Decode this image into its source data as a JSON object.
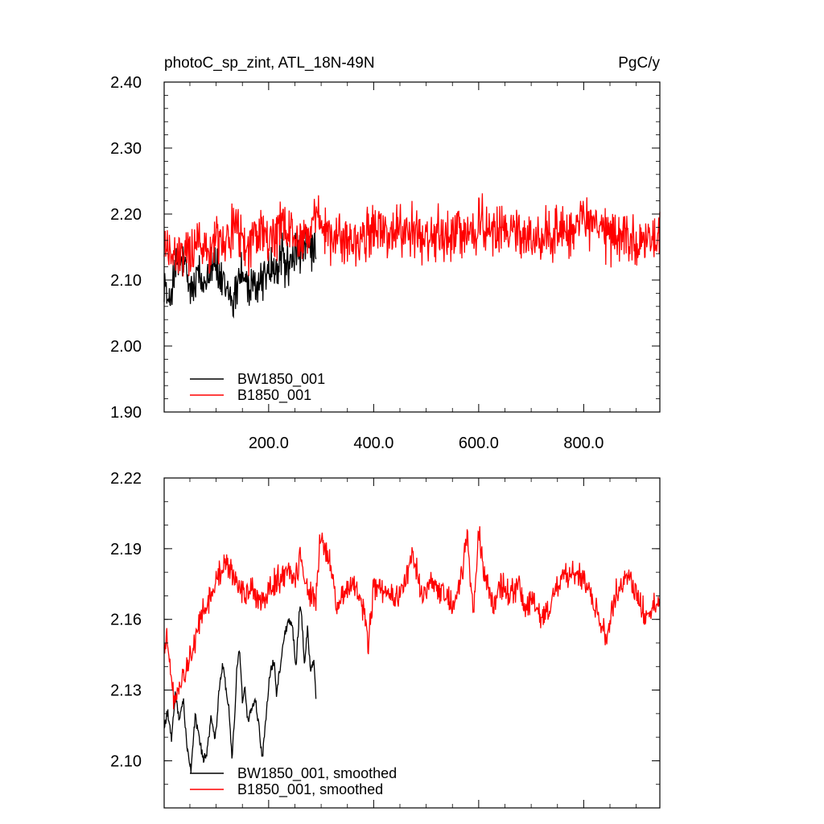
{
  "chart_data": [
    {
      "type": "line",
      "title": "photoC_sp_zint, ATL_18N-49N",
      "units": "PgC/y",
      "xlabel": "",
      "ylabel": "",
      "xlim": [
        1,
        945
      ],
      "ylim": [
        1.9,
        2.4
      ],
      "x_ticks": [
        200.0,
        400.0,
        600.0,
        800.0
      ],
      "x_tick_labels": [
        "200.0",
        "400.0",
        "600.0",
        "800.0"
      ],
      "y_ticks": [
        1.9,
        2.0,
        2.1,
        2.2,
        2.3,
        2.4
      ],
      "y_tick_labels": [
        "1.90",
        "2.00",
        "2.10",
        "2.20",
        "2.30",
        "2.40"
      ],
      "grid": false,
      "legend_position": "bottom-left",
      "series": [
        {
          "name": "BW1850_001",
          "color": "#000000",
          "x_range": [
            1,
            290
          ],
          "anchors": [
            [
              1,
              2.11
            ],
            [
              5,
              2.08
            ],
            [
              10,
              2.05
            ],
            [
              15,
              2.09
            ],
            [
              25,
              2.12
            ],
            [
              35,
              2.13
            ],
            [
              45,
              2.1
            ],
            [
              55,
              2.08
            ],
            [
              65,
              2.11
            ],
            [
              75,
              2.09
            ],
            [
              85,
              2.12
            ],
            [
              95,
              2.14
            ],
            [
              105,
              2.1
            ],
            [
              115,
              2.09
            ],
            [
              125,
              2.08
            ],
            [
              135,
              2.07
            ],
            [
              145,
              2.12
            ],
            [
              155,
              2.1
            ],
            [
              165,
              2.08
            ],
            [
              175,
              2.09
            ],
            [
              185,
              2.1
            ],
            [
              195,
              2.11
            ],
            [
              205,
              2.12
            ],
            [
              215,
              2.11
            ],
            [
              225,
              2.14
            ],
            [
              235,
              2.12
            ],
            [
              245,
              2.13
            ],
            [
              255,
              2.15
            ],
            [
              265,
              2.14
            ],
            [
              275,
              2.15
            ],
            [
              285,
              2.14
            ],
            [
              290,
              2.13
            ]
          ],
          "noise_amplitude": 0.045
        },
        {
          "name": "B1850_001",
          "color": "#ff0000",
          "x_range": [
            1,
            945
          ],
          "anchors": [
            [
              1,
              2.15
            ],
            [
              10,
              2.15
            ],
            [
              20,
              2.13
            ],
            [
              30,
              2.13
            ],
            [
              40,
              2.14
            ],
            [
              55,
              2.15
            ],
            [
              70,
              2.16
            ],
            [
              85,
              2.15
            ],
            [
              95,
              2.17
            ],
            [
              110,
              2.16
            ],
            [
              125,
              2.17
            ],
            [
              140,
              2.18
            ],
            [
              155,
              2.15
            ],
            [
              170,
              2.16
            ],
            [
              185,
              2.17
            ],
            [
              200,
              2.16
            ],
            [
              215,
              2.17
            ],
            [
              230,
              2.18
            ],
            [
              245,
              2.17
            ],
            [
              260,
              2.16
            ],
            [
              275,
              2.17
            ],
            [
              290,
              2.19
            ],
            [
              300,
              2.18
            ],
            [
              320,
              2.16
            ],
            [
              340,
              2.17
            ],
            [
              360,
              2.15
            ],
            [
              380,
              2.16
            ],
            [
              400,
              2.18
            ],
            [
              420,
              2.17
            ],
            [
              440,
              2.17
            ],
            [
              460,
              2.18
            ],
            [
              480,
              2.17
            ],
            [
              500,
              2.16
            ],
            [
              520,
              2.17
            ],
            [
              540,
              2.16
            ],
            [
              560,
              2.18
            ],
            [
              580,
              2.17
            ],
            [
              600,
              2.19
            ],
            [
              620,
              2.17
            ],
            [
              640,
              2.17
            ],
            [
              660,
              2.18
            ],
            [
              680,
              2.17
            ],
            [
              700,
              2.16
            ],
            [
              720,
              2.16
            ],
            [
              740,
              2.17
            ],
            [
              760,
              2.18
            ],
            [
              780,
              2.17
            ],
            [
              800,
              2.19
            ],
            [
              820,
              2.18
            ],
            [
              840,
              2.17
            ],
            [
              860,
              2.16
            ],
            [
              880,
              2.17
            ],
            [
              900,
              2.16
            ],
            [
              920,
              2.16
            ],
            [
              945,
              2.16
            ]
          ],
          "noise_amplitude": 0.05
        }
      ]
    },
    {
      "type": "line",
      "title": "",
      "xlabel": "",
      "ylabel": "",
      "xlim": [
        1,
        945
      ],
      "ylim": [
        2.08,
        2.22
      ],
      "y_ticks": [
        2.1,
        2.13,
        2.16,
        2.19,
        2.22
      ],
      "y_tick_labels": [
        "2.10",
        "2.13",
        "2.16",
        "2.19",
        "2.22"
      ],
      "grid": false,
      "legend_position": "bottom-left",
      "series": [
        {
          "name": "BW1850_001, smoothed",
          "color": "#000000",
          "x_range": [
            1,
            290
          ],
          "points": [
            [
              1,
              2.115
            ],
            [
              8,
              2.121
            ],
            [
              15,
              2.108
            ],
            [
              22,
              2.129
            ],
            [
              30,
              2.117
            ],
            [
              38,
              2.125
            ],
            [
              45,
              2.104
            ],
            [
              52,
              2.096
            ],
            [
              60,
              2.119
            ],
            [
              68,
              2.109
            ],
            [
              75,
              2.101
            ],
            [
              82,
              2.102
            ],
            [
              90,
              2.118
            ],
            [
              98,
              2.108
            ],
            [
              105,
              2.128
            ],
            [
              112,
              2.141
            ],
            [
              118,
              2.132
            ],
            [
              125,
              2.121
            ],
            [
              130,
              2.101
            ],
            [
              135,
              2.118
            ],
            [
              140,
              2.142
            ],
            [
              145,
              2.147
            ],
            [
              150,
              2.126
            ],
            [
              155,
              2.13
            ],
            [
              160,
              2.117
            ],
            [
              168,
              2.121
            ],
            [
              175,
              2.126
            ],
            [
              182,
              2.113
            ],
            [
              188,
              2.101
            ],
            [
              195,
              2.119
            ],
            [
              202,
              2.136
            ],
            [
              210,
              2.143
            ],
            [
              215,
              2.129
            ],
            [
              222,
              2.14
            ],
            [
              230,
              2.153
            ],
            [
              238,
              2.159
            ],
            [
              245,
              2.158
            ],
            [
              252,
              2.139
            ],
            [
              258,
              2.162
            ],
            [
              262,
              2.165
            ],
            [
              268,
              2.141
            ],
            [
              274,
              2.156
            ],
            [
              280,
              2.137
            ],
            [
              286,
              2.143
            ],
            [
              290,
              2.128
            ]
          ]
        },
        {
          "name": "B1850_001, smoothed",
          "color": "#ff0000",
          "x_range": [
            1,
            945
          ],
          "anchors": [
            [
              1,
              2.145
            ],
            [
              5,
              2.153
            ],
            [
              12,
              2.14
            ],
            [
              20,
              2.126
            ],
            [
              30,
              2.13
            ],
            [
              45,
              2.14
            ],
            [
              60,
              2.15
            ],
            [
              70,
              2.16
            ],
            [
              80,
              2.165
            ],
            [
              95,
              2.175
            ],
            [
              110,
              2.18
            ],
            [
              120,
              2.185
            ],
            [
              140,
              2.175
            ],
            [
              155,
              2.17
            ],
            [
              170,
              2.172
            ],
            [
              190,
              2.168
            ],
            [
              210,
              2.175
            ],
            [
              230,
              2.18
            ],
            [
              250,
              2.178
            ],
            [
              262,
              2.186
            ],
            [
              275,
              2.17
            ],
            [
              290,
              2.17
            ],
            [
              298,
              2.195
            ],
            [
              315,
              2.185
            ],
            [
              330,
              2.165
            ],
            [
              340,
              2.17
            ],
            [
              360,
              2.175
            ],
            [
              380,
              2.165
            ],
            [
              390,
              2.15
            ],
            [
              400,
              2.175
            ],
            [
              420,
              2.17
            ],
            [
              440,
              2.17
            ],
            [
              460,
              2.175
            ],
            [
              475,
              2.188
            ],
            [
              490,
              2.172
            ],
            [
              510,
              2.175
            ],
            [
              530,
              2.172
            ],
            [
              550,
              2.165
            ],
            [
              570,
              2.18
            ],
            [
              578,
              2.197
            ],
            [
              590,
              2.16
            ],
            [
              600,
              2.198
            ],
            [
              610,
              2.18
            ],
            [
              630,
              2.165
            ],
            [
              640,
              2.175
            ],
            [
              660,
              2.17
            ],
            [
              675,
              2.175
            ],
            [
              690,
              2.165
            ],
            [
              705,
              2.168
            ],
            [
              720,
              2.16
            ],
            [
              735,
              2.165
            ],
            [
              750,
              2.175
            ],
            [
              770,
              2.18
            ],
            [
              785,
              2.18
            ],
            [
              800,
              2.175
            ],
            [
              815,
              2.17
            ],
            [
              830,
              2.16
            ],
            [
              845,
              2.15
            ],
            [
              860,
              2.17
            ],
            [
              880,
              2.18
            ],
            [
              900,
              2.17
            ],
            [
              920,
              2.16
            ],
            [
              930,
              2.165
            ],
            [
              940,
              2.17
            ],
            [
              945,
              2.165
            ]
          ],
          "noise_amplitude": 0.007
        }
      ]
    }
  ]
}
